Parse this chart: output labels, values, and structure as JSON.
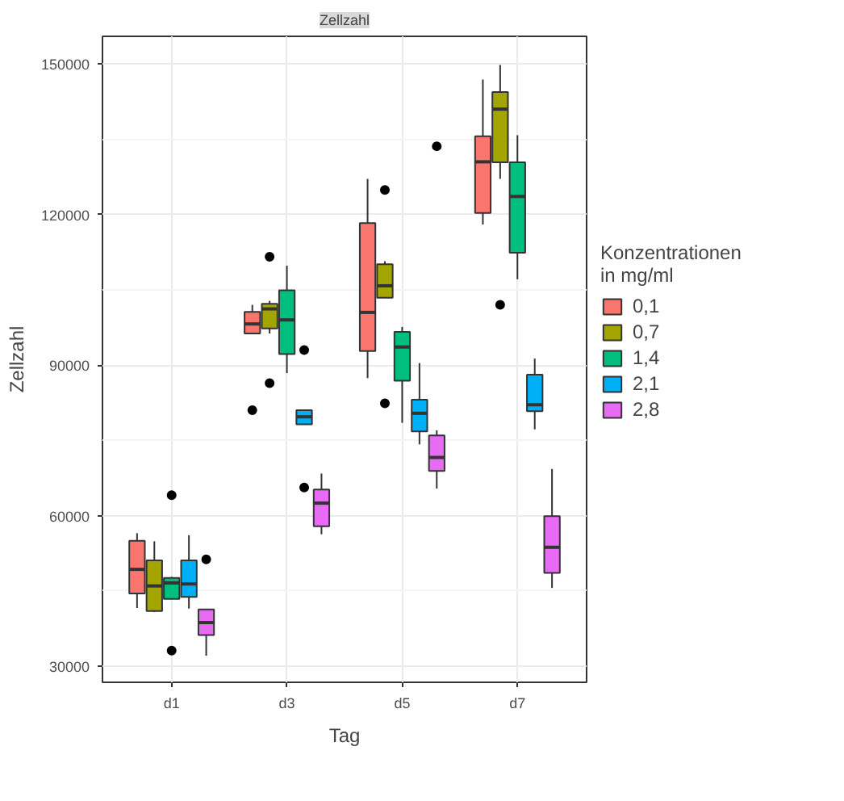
{
  "chart_data": {
    "type": "box",
    "title": "Zellzahl",
    "xlabel": "Tag",
    "ylabel": "Zellzahl",
    "legend_title": "Konzentrationen in mg/ml",
    "categories": [
      "d1",
      "d3",
      "d5",
      "d7"
    ],
    "ylim": [
      26800,
      155500
    ],
    "yticks": [
      30000,
      60000,
      90000,
      120000,
      150000
    ],
    "grid": true,
    "legend": "right",
    "series": [
      {
        "name": "0,1",
        "color": "#f8766d",
        "boxes": [
          {
            "low": 41600,
            "q1": 44500,
            "median": 49300,
            "q3": 55000,
            "high": 56500
          },
          {
            "low": 96300,
            "q1": 96300,
            "median": 98200,
            "q3": 100600,
            "high": 102000,
            "outliers": [
              81000
            ]
          },
          {
            "low": 87400,
            "q1": 92800,
            "median": 100500,
            "q3": 118300,
            "high": 127100
          },
          {
            "low": 118000,
            "q1": 120300,
            "median": 130500,
            "q3": 135600,
            "high": 146900
          }
        ]
      },
      {
        "name": "0,7",
        "color": "#a3a500",
        "boxes": [
          {
            "low": 40800,
            "q1": 41000,
            "median": 46000,
            "q3": 51100,
            "high": 54900
          },
          {
            "low": 96300,
            "q1": 97300,
            "median": 101200,
            "q3": 102200,
            "high": 102800,
            "outliers": [
              86400,
              111600
            ]
          },
          {
            "low": 103400,
            "q1": 103400,
            "median": 105800,
            "q3": 110100,
            "high": 110700,
            "outliers": [
              82400,
              124900
            ]
          },
          {
            "low": 127100,
            "q1": 130400,
            "median": 141000,
            "q3": 144400,
            "high": 149800,
            "outliers": [
              102000
            ]
          }
        ]
      },
      {
        "name": "1,4",
        "color": "#00bf7d",
        "boxes": [
          {
            "low": 43400,
            "q1": 43400,
            "median": 46600,
            "q3": 47600,
            "high": 47800,
            "outliers": [
              33100,
              64100
            ]
          },
          {
            "low": 88400,
            "q1": 92200,
            "median": 99000,
            "q3": 104900,
            "high": 109800
          },
          {
            "low": 78500,
            "q1": 86900,
            "median": 93600,
            "q3": 96600,
            "high": 97600
          },
          {
            "low": 107100,
            "q1": 112400,
            "median": 123600,
            "q3": 130400,
            "high": 135800
          }
        ]
      },
      {
        "name": "2,1",
        "color": "#00b0f6",
        "boxes": [
          {
            "low": 41500,
            "q1": 43800,
            "median": 46400,
            "q3": 51100,
            "high": 56100
          },
          {
            "low": 78200,
            "q1": 78200,
            "median": 79700,
            "q3": 81000,
            "high": 81000,
            "outliers": [
              65600,
              93000
            ]
          },
          {
            "low": 74200,
            "q1": 76800,
            "median": 80400,
            "q3": 83100,
            "high": 90400
          },
          {
            "low": 77200,
            "q1": 80800,
            "median": 82100,
            "q3": 88100,
            "high": 91300
          }
        ]
      },
      {
        "name": "2,8",
        "color": "#e76bf3",
        "boxes": [
          {
            "low": 32100,
            "q1": 36200,
            "median": 38700,
            "q3": 41300,
            "high": 41300,
            "outliers": [
              51300
            ]
          },
          {
            "low": 56300,
            "q1": 57900,
            "median": 62500,
            "q3": 65200,
            "high": 68400
          },
          {
            "low": 65400,
            "q1": 68900,
            "median": 71600,
            "q3": 76000,
            "high": 77000,
            "outliers": [
              133600
            ]
          },
          {
            "low": 45600,
            "q1": 48600,
            "median": 53700,
            "q3": 59900,
            "high": 69300
          }
        ]
      }
    ]
  }
}
